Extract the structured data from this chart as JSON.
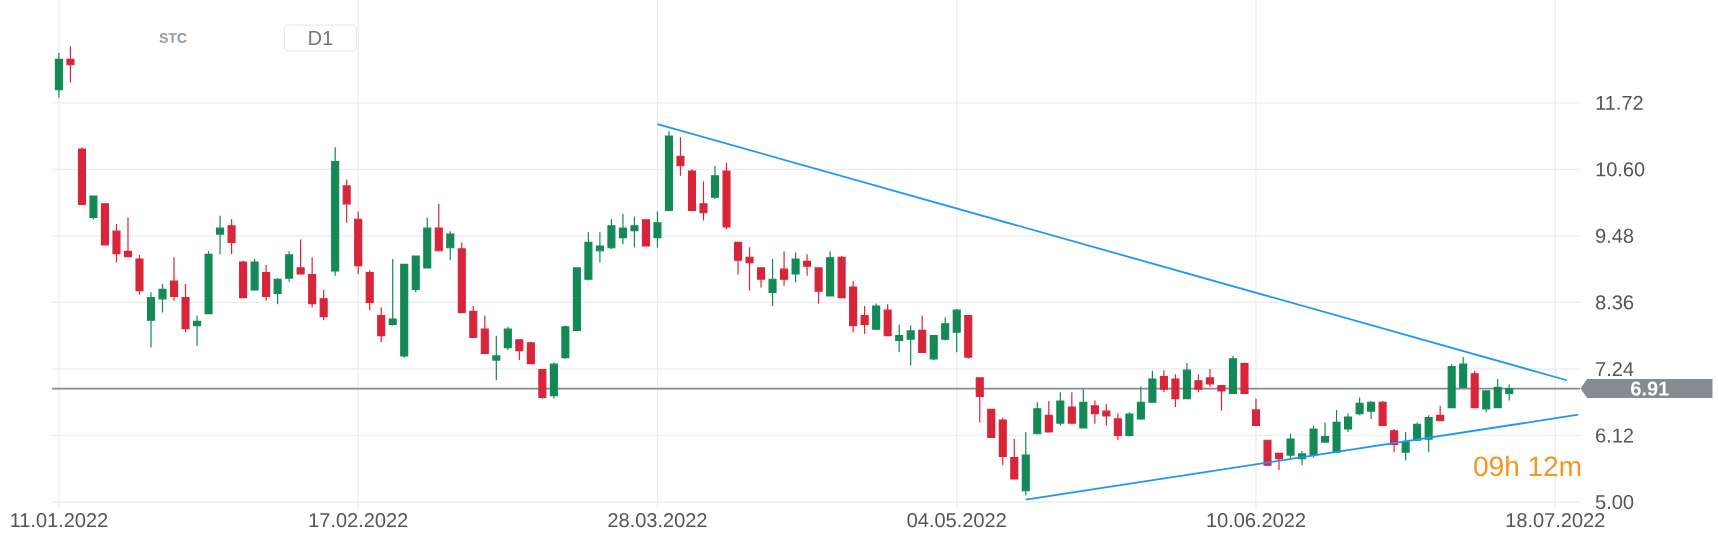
{
  "chart_data": {
    "type": "candlestick",
    "categories": [
      "11.01.2022",
      null,
      null,
      null,
      null,
      null,
      null,
      null,
      null,
      null,
      null,
      null,
      null,
      null,
      null,
      null,
      null,
      null,
      null,
      null,
      null,
      null,
      null,
      null,
      null,
      null,
      "17.02.2022",
      null,
      null,
      null,
      null,
      null,
      null,
      null,
      null,
      null,
      null,
      null,
      null,
      null,
      null,
      null,
      null,
      null,
      null,
      null,
      null,
      null,
      null,
      null,
      null,
      null,
      "28.03.2022",
      null,
      null,
      null,
      null,
      null,
      null,
      null,
      null,
      null,
      null,
      null,
      null,
      null,
      null,
      null,
      null,
      null,
      null,
      null,
      null,
      null,
      null,
      null,
      null,
      null,
      "04.05.2022",
      null,
      null,
      null,
      null,
      null,
      null,
      null,
      null,
      null,
      null,
      null,
      null,
      null,
      null,
      null,
      null,
      null,
      null,
      null,
      null,
      null,
      null,
      null,
      null,
      null,
      "10.06.2022",
      null,
      null,
      null,
      null,
      null,
      null,
      null,
      null,
      null,
      null,
      null,
      null,
      null,
      null,
      null,
      null,
      null,
      null,
      null,
      null,
      null,
      null,
      null,
      null,
      null,
      "18.07.2022",
      null,
      null
    ],
    "ohlc": [
      [
        11.94,
        12.56,
        11.81,
        12.45
      ],
      [
        12.45,
        12.67,
        12.06,
        12.36
      ],
      [
        10.94,
        10.97,
        10.01,
        10.01
      ],
      [
        9.79,
        10.15,
        9.76,
        10.15
      ],
      [
        10.02,
        10.02,
        9.33,
        9.33
      ],
      [
        9.56,
        9.68,
        9.03,
        9.18
      ],
      [
        9.22,
        9.79,
        9.13,
        9.13
      ],
      [
        9.09,
        9.16,
        8.49,
        8.56
      ],
      [
        8.06,
        8.53,
        7.6,
        8.44
      ],
      [
        8.42,
        8.67,
        8.19,
        8.58
      ],
      [
        8.72,
        9.12,
        8.39,
        8.46
      ],
      [
        8.44,
        8.67,
        7.86,
        7.92
      ],
      [
        7.97,
        8.14,
        7.63,
        8.04
      ],
      [
        8.17,
        9.22,
        8.17,
        9.17
      ],
      [
        9.51,
        9.82,
        9.17,
        9.61
      ],
      [
        9.65,
        9.76,
        9.17,
        9.37
      ],
      [
        9.04,
        9.06,
        8.44,
        8.44
      ],
      [
        8.57,
        9.09,
        8.57,
        9.04
      ],
      [
        8.86,
        8.99,
        8.39,
        8.46
      ],
      [
        8.51,
        8.77,
        8.33,
        8.75
      ],
      [
        8.77,
        9.22,
        8.71,
        9.16
      ],
      [
        8.94,
        9.42,
        8.84,
        8.84
      ],
      [
        8.83,
        9.12,
        8.28,
        8.34
      ],
      [
        8.42,
        8.57,
        8.06,
        8.12
      ],
      [
        8.89,
        10.97,
        8.81,
        10.73
      ],
      [
        10.32,
        10.43,
        9.7,
        10.02
      ],
      [
        9.76,
        9.89,
        8.84,
        8.98
      ],
      [
        8.86,
        8.9,
        8.23,
        8.36
      ],
      [
        8.14,
        8.28,
        7.69,
        7.8
      ],
      [
        7.99,
        9.09,
        7.97,
        8.08
      ],
      [
        7.46,
        9.0,
        7.43,
        9.0
      ],
      [
        8.58,
        9.14,
        8.53,
        9.14
      ],
      [
        8.94,
        9.79,
        8.94,
        9.61
      ],
      [
        9.61,
        10.02,
        9.23,
        9.23
      ],
      [
        9.28,
        9.56,
        9.07,
        9.51
      ],
      [
        9.26,
        9.37,
        8.19,
        8.19
      ],
      [
        8.21,
        8.3,
        7.77,
        7.77
      ],
      [
        7.91,
        8.14,
        7.5,
        7.5
      ],
      [
        7.39,
        7.8,
        7.05,
        7.46
      ],
      [
        7.6,
        7.95,
        7.56,
        7.91
      ],
      [
        7.73,
        7.73,
        7.39,
        7.55
      ],
      [
        7.68,
        7.7,
        7.33,
        7.33
      ],
      [
        7.23,
        7.23,
        6.74,
        6.76
      ],
      [
        6.79,
        7.35,
        6.74,
        7.32
      ],
      [
        7.43,
        7.97,
        7.41,
        7.95
      ],
      [
        7.89,
        8.94,
        7.89,
        8.94
      ],
      [
        8.75,
        9.54,
        8.73,
        9.37
      ],
      [
        9.23,
        9.54,
        9.03,
        9.31
      ],
      [
        9.28,
        9.76,
        9.26,
        9.65
      ],
      [
        9.45,
        9.85,
        9.34,
        9.61
      ],
      [
        9.57,
        9.8,
        9.29,
        9.65
      ],
      [
        9.75,
        9.75,
        9.31,
        9.31
      ],
      [
        9.45,
        9.89,
        9.28,
        9.7
      ],
      [
        9.91,
        11.24,
        9.91,
        11.16
      ],
      [
        10.82,
        11.14,
        10.49,
        10.66
      ],
      [
        10.57,
        10.6,
        9.91,
        9.91
      ],
      [
        10.02,
        10.4,
        9.74,
        9.87
      ],
      [
        10.13,
        10.66,
        10.1,
        10.49
      ],
      [
        10.57,
        10.71,
        9.59,
        9.63
      ],
      [
        9.37,
        9.37,
        8.83,
        9.07
      ],
      [
        9.12,
        9.29,
        8.56,
        9.03
      ],
      [
        8.94,
        8.94,
        8.61,
        8.75
      ],
      [
        8.53,
        9.09,
        8.3,
        8.75
      ],
      [
        8.92,
        9.22,
        8.64,
        8.75
      ],
      [
        8.84,
        9.2,
        8.7,
        9.09
      ],
      [
        9.05,
        9.17,
        8.81,
        8.97
      ],
      [
        8.94,
        8.94,
        8.34,
        8.55
      ],
      [
        8.47,
        9.22,
        8.47,
        9.11
      ],
      [
        9.12,
        9.14,
        8.44,
        8.44
      ],
      [
        8.62,
        8.72,
        7.86,
        7.97
      ],
      [
        8.14,
        8.3,
        7.83,
        7.99
      ],
      [
        7.91,
        8.34,
        7.89,
        8.3
      ],
      [
        8.23,
        8.33,
        7.8,
        7.8
      ],
      [
        7.72,
        7.99,
        7.52,
        7.8
      ],
      [
        7.74,
        7.97,
        7.3,
        7.88
      ],
      [
        7.89,
        8.14,
        7.52,
        7.52
      ],
      [
        7.41,
        7.8,
        7.39,
        7.8
      ],
      [
        7.74,
        8.11,
        7.72,
        8.0
      ],
      [
        7.86,
        8.25,
        7.52,
        8.23
      ],
      [
        8.14,
        8.14,
        7.41,
        7.44
      ],
      [
        7.09,
        7.09,
        6.34,
        6.78
      ],
      [
        6.56,
        6.56,
        6.09,
        6.09
      ],
      [
        6.38,
        6.42,
        5.62,
        5.77
      ],
      [
        5.75,
        6.06,
        5.39,
        5.39
      ],
      [
        5.19,
        6.18,
        5.11,
        5.79
      ],
      [
        6.15,
        6.68,
        6.15,
        6.57
      ],
      [
        6.46,
        6.7,
        6.18,
        6.18
      ],
      [
        6.33,
        6.85,
        6.29,
        6.7
      ],
      [
        6.6,
        6.85,
        6.31,
        6.33
      ],
      [
        6.25,
        6.9,
        6.25,
        6.68
      ],
      [
        6.62,
        6.71,
        6.32,
        6.49
      ],
      [
        6.53,
        6.65,
        6.29,
        6.45
      ],
      [
        6.4,
        6.49,
        6.04,
        6.12
      ],
      [
        6.12,
        6.51,
        6.1,
        6.48
      ],
      [
        6.4,
        6.94,
        6.38,
        6.68
      ],
      [
        6.68,
        7.21,
        6.68,
        7.07
      ],
      [
        7.11,
        7.22,
        6.85,
        6.9
      ],
      [
        7.07,
        7.15,
        6.6,
        6.74
      ],
      [
        6.74,
        7.34,
        6.74,
        7.22
      ],
      [
        7.04,
        7.15,
        6.85,
        6.9
      ],
      [
        7.09,
        7.24,
        6.94,
        6.99
      ],
      [
        6.96,
        6.96,
        6.54,
        6.87
      ],
      [
        6.83,
        7.46,
        6.83,
        7.41
      ],
      [
        7.33,
        7.35,
        6.83,
        6.83
      ],
      [
        6.55,
        6.74,
        6.29,
        6.29
      ],
      [
        6.04,
        6.04,
        5.62,
        5.62
      ],
      [
        5.82,
        5.82,
        5.54,
        5.73
      ],
      [
        5.79,
        6.15,
        5.73,
        6.06
      ],
      [
        5.73,
        5.86,
        5.62,
        5.81
      ],
      [
        5.79,
        6.29,
        5.75,
        6.23
      ],
      [
        6.01,
        6.34,
        6.01,
        6.1
      ],
      [
        5.84,
        6.55,
        5.84,
        6.34
      ],
      [
        6.23,
        6.49,
        6.18,
        6.43
      ],
      [
        6.49,
        6.76,
        6.46,
        6.66
      ],
      [
        6.53,
        6.7,
        6.4,
        6.68
      ],
      [
        6.68,
        6.7,
        6.29,
        6.29
      ],
      [
        6.2,
        6.23,
        5.84,
        5.97
      ],
      [
        5.84,
        6.18,
        5.7,
        6.01
      ],
      [
        6.04,
        6.34,
        6.04,
        6.31
      ],
      [
        6.06,
        6.46,
        5.84,
        6.42
      ],
      [
        6.46,
        6.62,
        6.37,
        6.37
      ],
      [
        6.59,
        7.32,
        6.59,
        7.28
      ],
      [
        6.93,
        7.44,
        6.93,
        7.32
      ],
      [
        7.16,
        7.21,
        6.59,
        6.59
      ],
      [
        6.57,
        6.87,
        6.51,
        6.87
      ],
      [
        6.59,
        7.07,
        6.59,
        6.93
      ],
      [
        6.83,
        6.98,
        6.71,
        6.91
      ],
      null,
      null,
      null,
      null,
      null,
      null
    ],
    "colors": [
      "#138a55",
      "#d8253a",
      "#d8253a",
      "#138a55",
      "#d8253a",
      "#d8253a",
      "#d8253a",
      "#d8253a",
      "#138a55",
      "#138a55",
      "#d8253a",
      "#d8253a",
      "#138a55",
      "#138a55",
      "#138a55",
      "#d8253a",
      "#d8253a",
      "#138a55",
      "#d8253a",
      "#138a55",
      "#138a55",
      "#d8253a",
      "#d8253a",
      "#d8253a",
      "#138a55",
      "#d8253a",
      "#d8253a",
      "#d8253a",
      "#d8253a",
      "#138a55",
      "#138a55",
      "#138a55",
      "#138a55",
      "#d8253a",
      "#138a55",
      "#d8253a",
      "#d8253a",
      "#d8253a",
      "#138a55",
      "#138a55",
      "#d8253a",
      "#d8253a",
      "#d8253a",
      "#138a55",
      "#138a55",
      "#138a55",
      "#138a55",
      "#138a55",
      "#138a55",
      "#138a55",
      "#138a55",
      "#d8253a",
      "#138a55",
      "#138a55",
      "#d8253a",
      "#d8253a",
      "#d8253a",
      "#138a55",
      "#d8253a",
      "#d8253a",
      "#d8253a",
      "#d8253a",
      "#138a55",
      "#d8253a",
      "#138a55",
      "#d8253a",
      "#d8253a",
      "#138a55",
      "#d8253a",
      "#d8253a",
      "#d8253a",
      "#138a55",
      "#d8253a",
      "#138a55",
      "#138a55",
      "#d8253a",
      "#138a55",
      "#138a55",
      "#138a55",
      "#d8253a",
      "#d8253a",
      "#d8253a",
      "#d8253a",
      "#d8253a",
      "#138a55",
      "#138a55",
      "#d8253a",
      "#138a55",
      "#d8253a",
      "#138a55",
      "#d8253a",
      "#d8253a",
      "#d8253a",
      "#138a55",
      "#138a55",
      "#138a55",
      "#d8253a",
      "#d8253a",
      "#138a55",
      "#d8253a",
      "#d8253a",
      "#d8253a",
      "#138a55",
      "#d8253a",
      "#d8253a",
      "#d8253a",
      "#d8253a",
      "#138a55",
      "#138a55",
      "#138a55",
      "#138a55",
      "#138a55",
      "#138a55",
      "#138a55",
      "#138a55",
      "#d8253a",
      "#d8253a",
      "#138a55",
      "#138a55",
      "#138a55",
      "#d8253a",
      "#138a55",
      "#138a55",
      "#d8253a",
      "#138a55",
      "#138a55",
      "#138a55",
      null,
      null,
      null,
      null,
      null,
      null
    ],
    "series": [
      {
        "type": "line",
        "color": "#2196f3",
        "values": [
          null,
          null,
          null,
          null,
          null,
          null,
          null,
          null,
          null,
          null,
          null,
          null,
          null,
          null,
          null,
          null,
          null,
          null,
          null,
          null,
          null,
          null,
          null,
          null,
          null,
          null,
          null,
          null,
          null,
          null,
          null,
          null,
          null,
          null,
          null,
          null,
          null,
          null,
          null,
          null,
          null,
          null,
          null,
          null,
          null,
          null,
          null,
          null,
          null,
          null,
          null,
          null,
          11.36,
          null,
          null,
          null,
          null,
          null,
          null,
          null,
          null,
          null,
          null,
          null,
          null,
          null,
          null,
          null,
          null,
          null,
          null,
          null,
          null,
          null,
          null,
          null,
          null,
          null,
          null,
          null,
          null,
          null,
          null,
          null,
          null,
          null,
          null,
          null,
          null,
          null,
          null,
          null,
          null,
          null,
          null,
          null,
          null,
          null,
          null,
          null,
          null,
          null,
          null,
          null,
          null,
          null,
          null,
          null,
          null,
          null,
          null,
          null,
          null,
          null,
          null,
          null,
          null,
          null,
          null,
          null,
          null,
          null,
          null,
          null,
          null,
          null,
          null,
          null,
          null,
          null,
          null,
          7.05,
          null
        ]
      },
      {
        "type": "line",
        "color": "#2196f3",
        "values": [
          null,
          null,
          null,
          null,
          null,
          null,
          null,
          null,
          null,
          null,
          null,
          null,
          null,
          null,
          null,
          null,
          null,
          null,
          null,
          null,
          null,
          null,
          null,
          null,
          null,
          null,
          null,
          null,
          null,
          null,
          null,
          null,
          null,
          null,
          null,
          null,
          null,
          null,
          null,
          null,
          null,
          null,
          null,
          null,
          null,
          null,
          null,
          null,
          null,
          null,
          null,
          null,
          null,
          null,
          null,
          null,
          null,
          null,
          null,
          null,
          null,
          null,
          null,
          null,
          null,
          null,
          null,
          null,
          null,
          null,
          null,
          null,
          null,
          null,
          null,
          null,
          null,
          null,
          null,
          null,
          null,
          null,
          null,
          null,
          5.04,
          null,
          null,
          null,
          null,
          null,
          null,
          null,
          null,
          null,
          null,
          null,
          null,
          null,
          null,
          null,
          null,
          null,
          null,
          null,
          null,
          null,
          null,
          null,
          null,
          null,
          null,
          null,
          null,
          null,
          null,
          null,
          null,
          null,
          null,
          null,
          null,
          null,
          null,
          null,
          null,
          null,
          null,
          null,
          null,
          null,
          null,
          null,
          6.47
        ]
      }
    ],
    "ylim": [
      4.9,
      13.45
    ],
    "yticks": [
      {
        "value": 5,
        "label": "5.00"
      },
      6.12,
      7.24,
      8.36,
      9.48,
      {
        "value": 10.6,
        "label": "10.60"
      },
      11.72
    ],
    "grid": true,
    "ref_lines": [
      {
        "axis": "y",
        "value": 6.91,
        "label": "6.91",
        "color": "#858c91"
      }
    ],
    "annotations": [
      "STC",
      "D1",
      "09h 12m"
    ]
  }
}
